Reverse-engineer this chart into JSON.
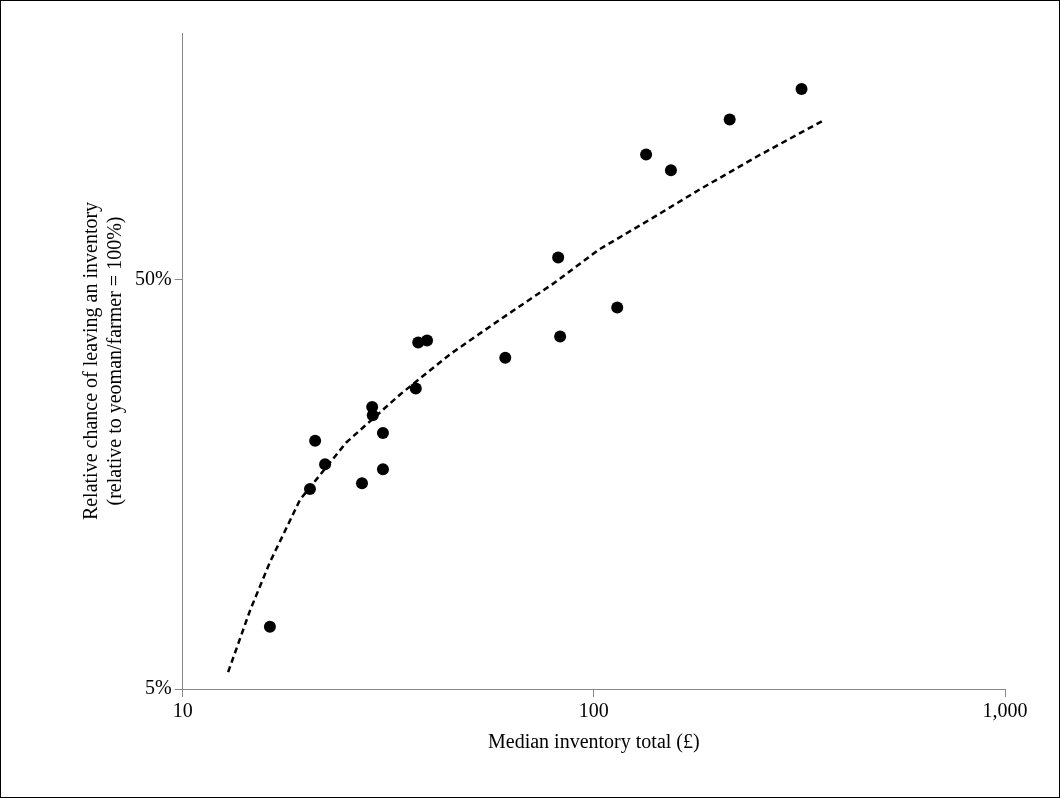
{
  "chart_data": {
    "type": "scatter",
    "xlabel": "Median inventory total (£)",
    "ylabel": "Relative chance of leaving an inventory\n(relative to yeoman/farmer = 100%)",
    "log": "xy",
    "xlim": [
      10,
      1000
    ],
    "xticks": [
      10,
      100,
      {
        "value": 1000,
        "label": "1,000"
      }
    ],
    "ylim": [
      5,
      200
    ],
    "yticks": [
      {
        "value": 5,
        "label": "5%"
      },
      {
        "value": 50,
        "label": "50%"
      }
    ],
    "grid": false,
    "legend": false,
    "series": [
      {
        "color": "#000000",
        "marker": "circle",
        "x": [
          16.3,
          20.4,
          21.0,
          22.2,
          27.3,
          28.9,
          29.0,
          30.7,
          30.7,
          36.9,
          37.4,
          39.3,
          60.9,
          81.9,
          82.8,
          114,
          134,
          154,
          214,
          320
        ],
        "values": [
          7.1,
          15.4,
          20.2,
          17.7,
          15.9,
          24.4,
          23.3,
          21.1,
          17.2,
          27.1,
          35.1,
          35.5,
          32.2,
          56.6,
          36.3,
          42.7,
          101,
          92.4,
          123,
          146
        ]
      },
      {
        "type": "line",
        "color": "#000000",
        "marker": "none",
        "line_style": "dashed",
        "x": [
          12.9,
          14.6,
          16.3,
          19.3,
          25,
          33.8,
          45,
          59.1,
          80,
          103,
          140,
          181,
          250,
          360
        ],
        "values": [
          5.5,
          7.8,
          10.2,
          14.5,
          20,
          26.2,
          33,
          39.9,
          49,
          59.2,
          71,
          83,
          100,
          122
        ]
      }
    ]
  }
}
